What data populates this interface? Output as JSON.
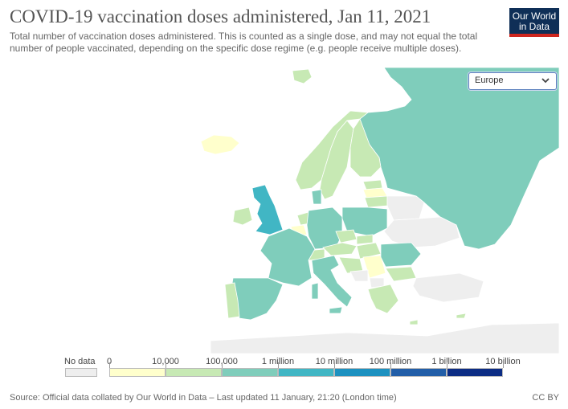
{
  "header": {
    "title": "COVID-19 vaccination doses administered, Jan 11, 2021",
    "subtitle": "Total number of vaccination doses administered. This is counted as a single dose, and may not equal the total number of people vaccinated, depending on the specific dose regime (e.g. people receive multiple doses).",
    "logo_line1": "Our World",
    "logo_line2": "in Data"
  },
  "region_selector": {
    "selected": "Europe"
  },
  "legend": {
    "no_data_label": "No data",
    "no_data_color": "#eeeeee",
    "bins": [
      {
        "label": "0",
        "color": "#ffffcc"
      },
      {
        "label": "10,000",
        "color": "#c7e9b4"
      },
      {
        "label": "100,000",
        "color": "#7fcdbb"
      },
      {
        "label": "1 million",
        "color": "#41b6c4"
      },
      {
        "label": "10 million",
        "color": "#1d91c0"
      },
      {
        "label": "100 million",
        "color": "#225ea8"
      },
      {
        "label": "1 billion",
        "color": "#0c2c84"
      },
      {
        "label": "10 billion",
        "color": ""
      }
    ]
  },
  "map_colors": {
    "other": "#eeeeee",
    "sea": "#ffffff",
    "border": "#ffffff"
  },
  "footer": {
    "source": "Source: Official data collated by Our World in Data – Last updated 11 January, 21:20 (London time)",
    "license": "CC BY"
  }
}
